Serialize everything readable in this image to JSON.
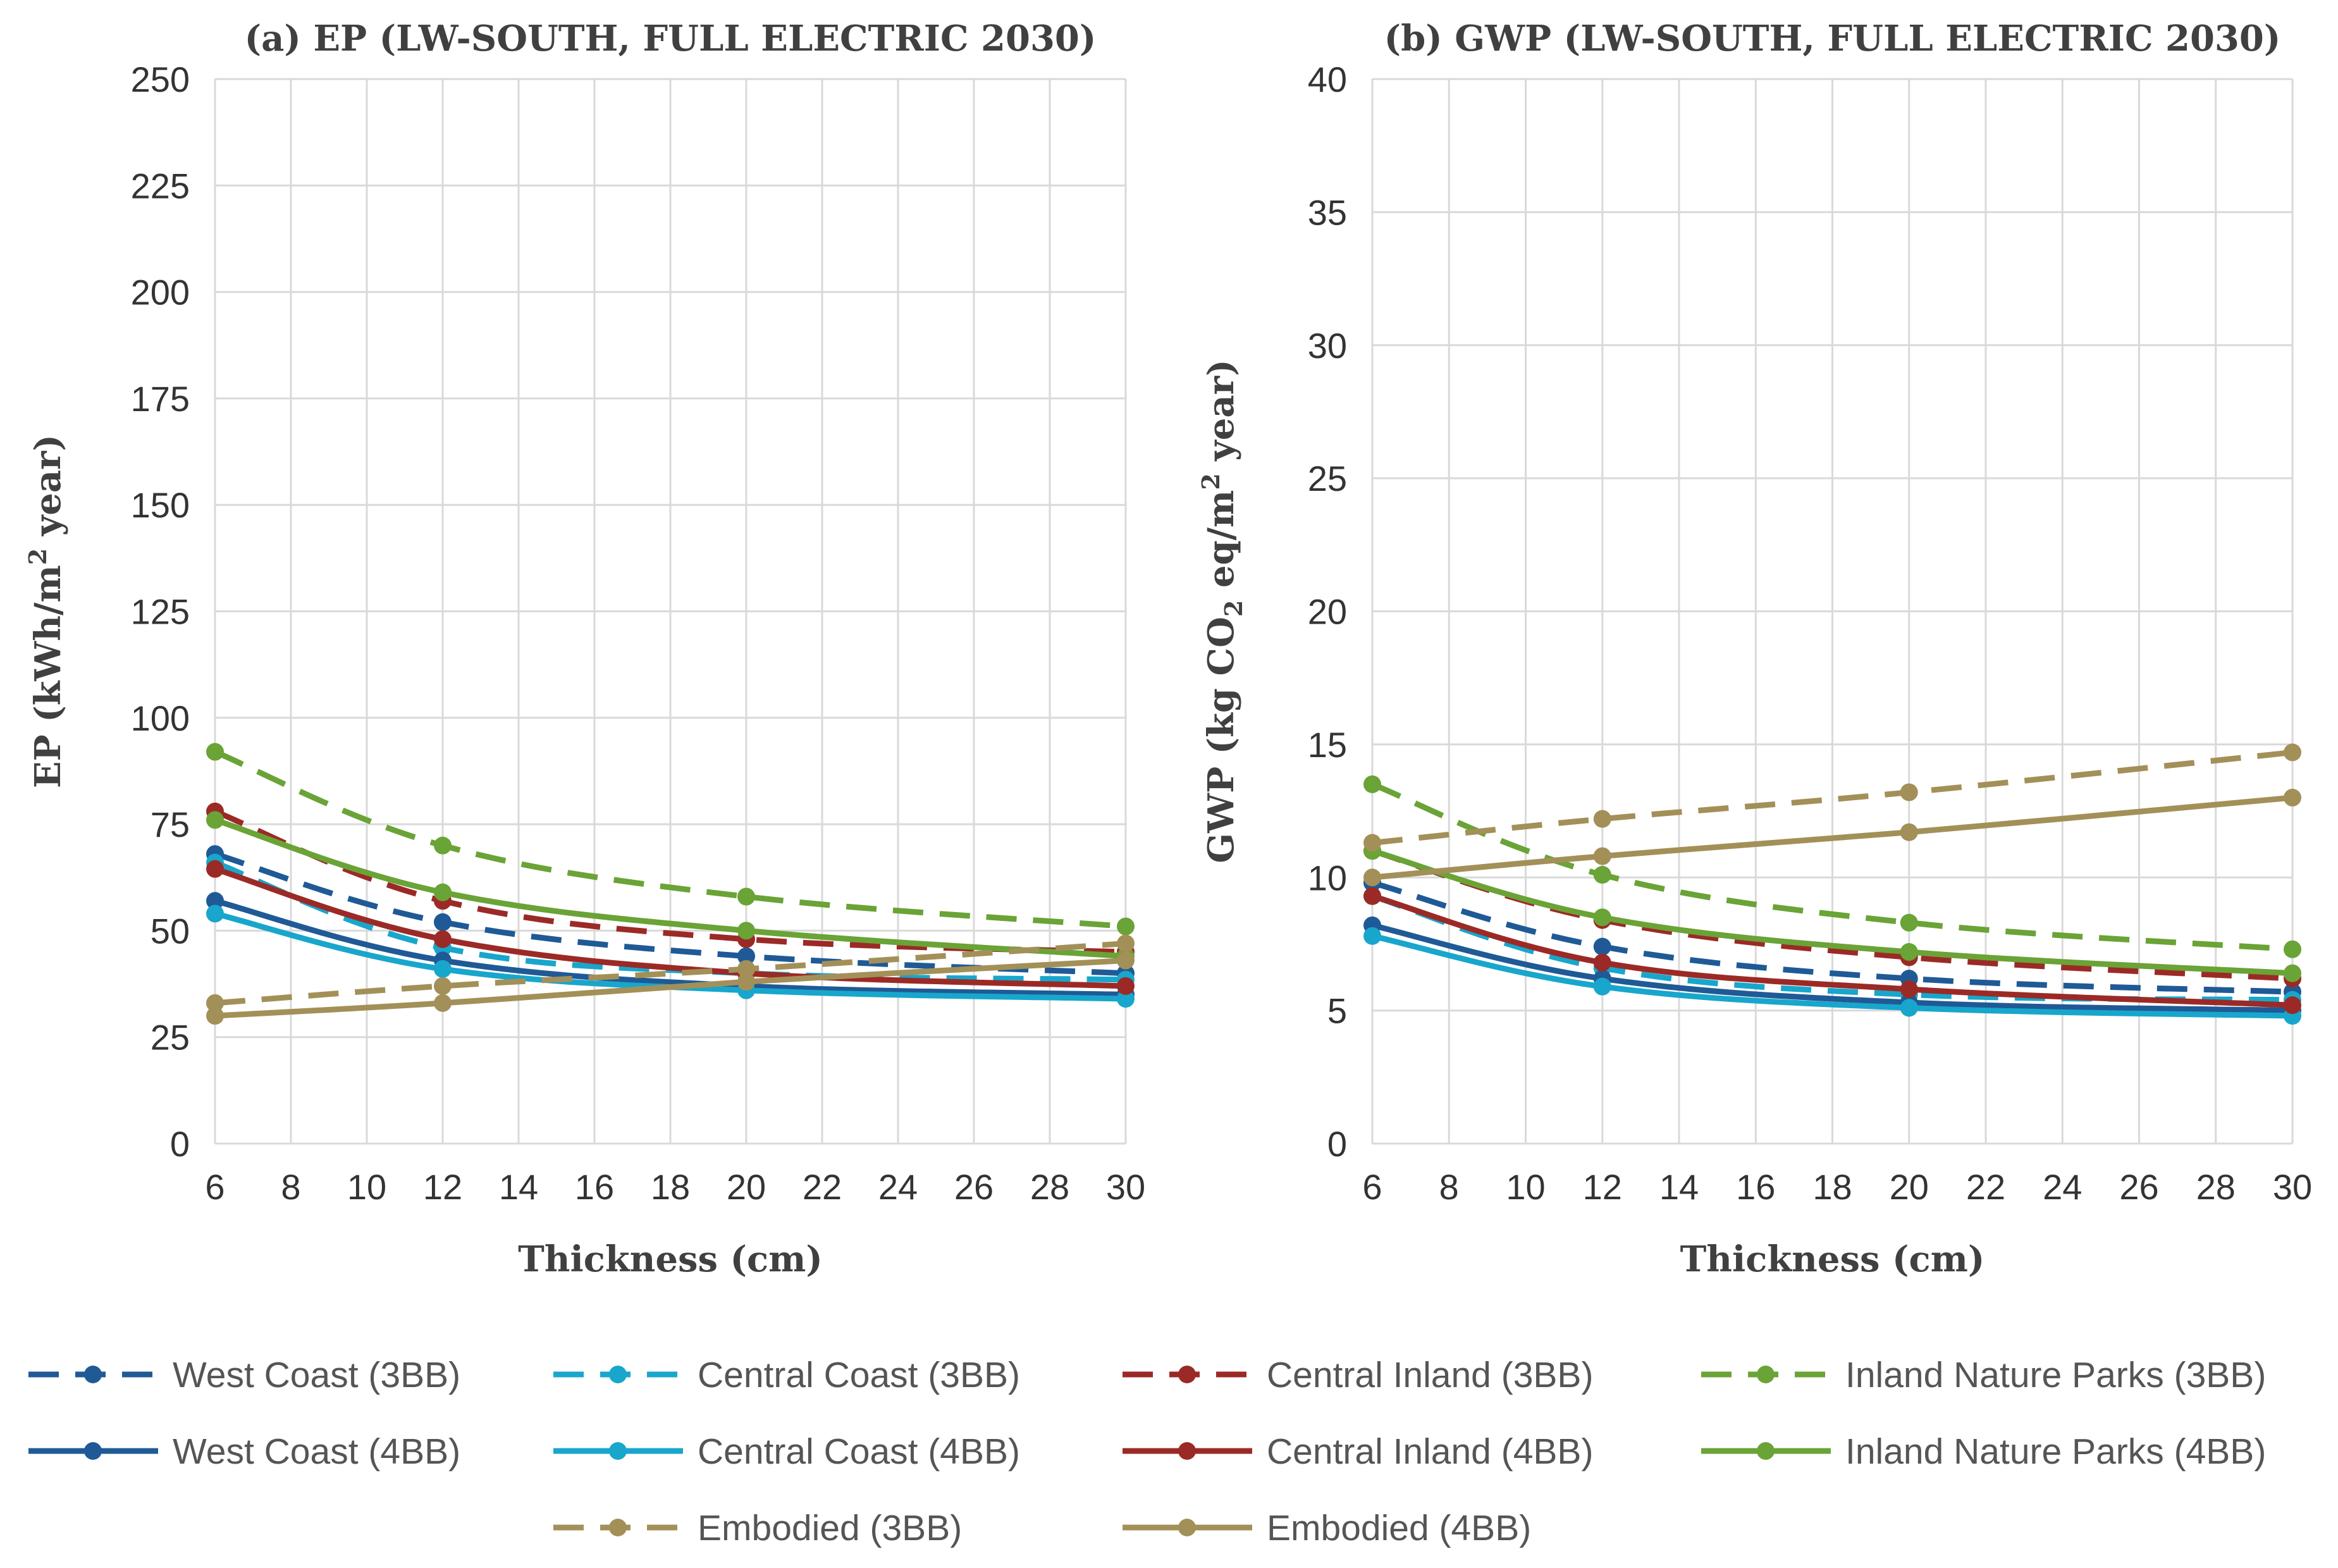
{
  "series_styles": [
    {
      "name": "West Coast (3BB)",
      "color": "#1f5a96",
      "dashed": true
    },
    {
      "name": "Central Coast (3BB)",
      "color": "#18a6cc",
      "dashed": true
    },
    {
      "name": "Central Inland (3BB)",
      "color": "#9b2a26",
      "dashed": true
    },
    {
      "name": "Inland Nature Parks (3BB)",
      "color": "#6aa336",
      "dashed": true
    },
    {
      "name": "West Coast (4BB)",
      "color": "#1f5a96",
      "dashed": false
    },
    {
      "name": "Central Coast (4BB)",
      "color": "#18a6cc",
      "dashed": false
    },
    {
      "name": "Central Inland (4BB)",
      "color": "#9b2a26",
      "dashed": false
    },
    {
      "name": "Inland Nature Parks (4BB)",
      "color": "#6aa336",
      "dashed": false
    },
    {
      "name": "Embodied (3BB)",
      "color": "#a39058",
      "dashed": true
    },
    {
      "name": "Embodied (4BB)",
      "color": "#a39058",
      "dashed": false
    }
  ],
  "chart_data": [
    {
      "type": "line",
      "title": "(a) EP (LW-SOUTH, FULL ELECTRIC 2030)",
      "xlabel": "Thickness  (cm)",
      "ylabel": "EP (kWh/m² year)",
      "ylabel_parts": [
        "EP (kWh/m",
        "2",
        " year)"
      ],
      "x": [
        6,
        12,
        20,
        30
      ],
      "xlim": [
        6,
        30
      ],
      "xticks": [
        6,
        8,
        10,
        12,
        14,
        16,
        18,
        20,
        22,
        24,
        26,
        28,
        30
      ],
      "ylim": [
        0,
        250
      ],
      "yticks": [
        0,
        25,
        50,
        75,
        100,
        125,
        150,
        175,
        200,
        225,
        250
      ],
      "grid": true,
      "series": [
        {
          "name": "West Coast (3BB)",
          "values": [
            68,
            52,
            44,
            40
          ]
        },
        {
          "name": "Central Coast (3BB)",
          "values": [
            66,
            46,
            40,
            38.5
          ]
        },
        {
          "name": "Central Inland (3BB)",
          "values": [
            78,
            57,
            48,
            45
          ]
        },
        {
          "name": "Inland Nature Parks (3BB)",
          "values": [
            92,
            70,
            58,
            51
          ]
        },
        {
          "name": "West Coast (4BB)",
          "values": [
            57,
            43,
            37,
            35
          ]
        },
        {
          "name": "Central Coast (4BB)",
          "values": [
            54,
            41,
            36,
            34
          ]
        },
        {
          "name": "Central Inland (4BB)",
          "values": [
            64.5,
            48,
            40,
            37
          ]
        },
        {
          "name": "Inland Nature Parks (4BB)",
          "values": [
            76,
            59,
            50,
            44
          ]
        },
        {
          "name": "Embodied (3BB)",
          "values": [
            33,
            37,
            41,
            47
          ]
        },
        {
          "name": "Embodied (4BB)",
          "values": [
            30,
            33,
            38,
            43
          ]
        }
      ]
    },
    {
      "type": "line",
      "title": "(b) GWP (LW-SOUTH, FULL ELECTRIC 2030)",
      "xlabel": "Thickness  (cm)",
      "ylabel": "GWP (kg CO₂ eq/m² year)",
      "ylabel_parts": [
        "GWP (kg CO",
        "2",
        " eq/m",
        "2",
        " year)"
      ],
      "x": [
        6,
        12,
        20,
        30
      ],
      "xlim": [
        6,
        30
      ],
      "xticks": [
        6,
        8,
        10,
        12,
        14,
        16,
        18,
        20,
        22,
        24,
        26,
        28,
        30
      ],
      "ylim": [
        0,
        40
      ],
      "yticks": [
        0,
        5,
        10,
        15,
        20,
        25,
        30,
        35,
        40
      ],
      "grid": true,
      "series": [
        {
          "name": "West Coast (3BB)",
          "values": [
            9.8,
            7.4,
            6.2,
            5.7
          ]
        },
        {
          "name": "Central Coast (3BB)",
          "values": [
            9.3,
            6.6,
            5.6,
            5.4
          ]
        },
        {
          "name": "Central Inland (3BB)",
          "values": [
            11.0,
            8.4,
            7.0,
            6.2
          ]
        },
        {
          "name": "Inland Nature Parks (3BB)",
          "values": [
            13.5,
            10.1,
            8.3,
            7.3
          ]
        },
        {
          "name": "West Coast (4BB)",
          "values": [
            8.2,
            6.2,
            5.3,
            5.0
          ]
        },
        {
          "name": "Central Coast (4BB)",
          "values": [
            7.8,
            5.9,
            5.1,
            4.8
          ]
        },
        {
          "name": "Central Inland (4BB)",
          "values": [
            9.3,
            6.8,
            5.8,
            5.2
          ]
        },
        {
          "name": "Inland Nature Parks (4BB)",
          "values": [
            11.0,
            8.5,
            7.2,
            6.4
          ]
        },
        {
          "name": "Embodied (3BB)",
          "values": [
            11.3,
            12.2,
            13.2,
            14.7
          ]
        },
        {
          "name": "Embodied (4BB)",
          "values": [
            10.0,
            10.8,
            11.7,
            13.0
          ]
        }
      ]
    }
  ]
}
